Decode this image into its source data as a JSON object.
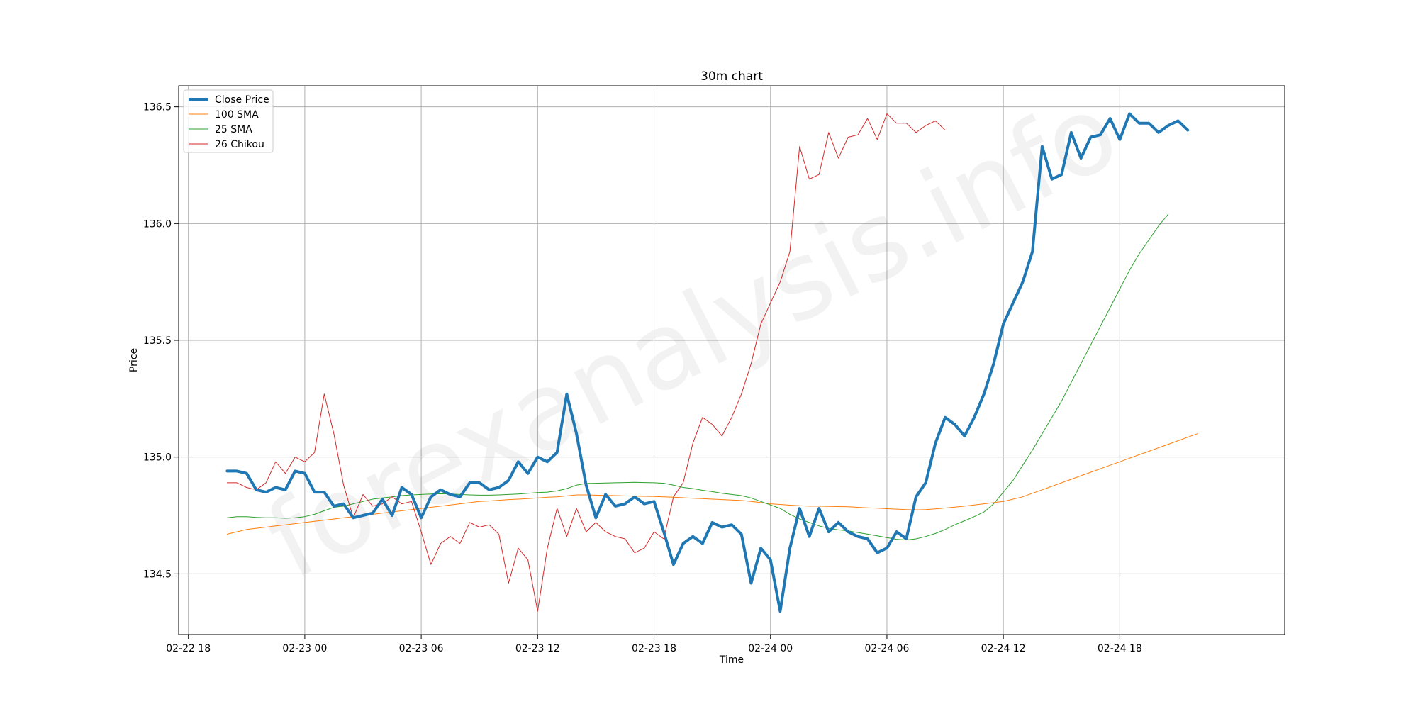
{
  "chart_data": {
    "type": "line",
    "title": "30m chart",
    "xlabel": "Time",
    "ylabel": "Price",
    "watermark": "forexanalysis.info",
    "x_start": "2023-02-22T20:00",
    "x_interval_minutes": 30,
    "xlim": [
      "2023-02-22T17:30",
      "2023-02-25T02:30"
    ],
    "ylim": [
      134.24,
      136.59
    ],
    "x_ticks": [
      {
        "t": "2023-02-22T18:00",
        "label": "02-22 18"
      },
      {
        "t": "2023-02-23T00:00",
        "label": "02-23 00"
      },
      {
        "t": "2023-02-23T06:00",
        "label": "02-23 06"
      },
      {
        "t": "2023-02-23T12:00",
        "label": "02-23 12"
      },
      {
        "t": "2023-02-23T18:00",
        "label": "02-23 18"
      },
      {
        "t": "2023-02-24T00:00",
        "label": "02-24 00"
      },
      {
        "t": "2023-02-24T06:00",
        "label": "02-24 06"
      },
      {
        "t": "2023-02-24T12:00",
        "label": "02-24 12"
      },
      {
        "t": "2023-02-24T18:00",
        "label": "02-24 18"
      }
    ],
    "y_ticks": [
      {
        "v": 134.5,
        "label": "134.5"
      },
      {
        "v": 135.0,
        "label": "135.0"
      },
      {
        "v": 135.5,
        "label": "135.5"
      },
      {
        "v": 136.0,
        "label": "136.0"
      },
      {
        "v": 136.5,
        "label": "136.5"
      }
    ],
    "grid": true,
    "legend_position": "top-left",
    "series": [
      {
        "name": "Close Price",
        "color": "#1f77b4",
        "width": 4,
        "start_index": 0,
        "values": [
          134.94,
          134.94,
          134.93,
          134.86,
          134.85,
          134.87,
          134.86,
          134.94,
          134.93,
          134.85,
          134.85,
          134.79,
          134.8,
          134.74,
          134.75,
          134.76,
          134.82,
          134.75,
          134.87,
          134.84,
          134.74,
          134.83,
          134.86,
          134.84,
          134.83,
          134.89,
          134.89,
          134.86,
          134.87,
          134.9,
          134.98,
          134.93,
          135.0,
          134.98,
          135.02,
          135.27,
          135.1,
          134.88,
          134.74,
          134.84,
          134.79,
          134.8,
          134.83,
          134.8,
          134.81,
          134.68,
          134.54,
          134.63,
          134.66,
          134.63,
          134.72,
          134.7,
          134.71,
          134.67,
          134.46,
          134.61,
          134.56,
          134.34,
          134.61,
          134.78,
          134.66,
          134.78,
          134.68,
          134.72,
          134.68,
          134.66,
          134.65,
          134.59,
          134.61,
          134.68,
          134.65,
          134.83,
          134.89,
          135.06,
          135.17,
          135.14,
          135.09,
          135.17,
          135.27,
          135.4,
          135.57,
          135.66,
          135.75,
          135.88,
          136.33,
          136.19,
          136.21,
          136.39,
          136.28,
          136.37,
          136.38,
          136.45,
          136.36,
          136.47,
          136.43,
          136.43,
          136.39,
          136.42,
          136.44,
          136.4
        ]
      },
      {
        "name": "100 SMA",
        "color": "#ff7f0e",
        "width": 1,
        "start_index": 0,
        "values": [
          134.67,
          134.68,
          134.69,
          134.695,
          134.7,
          134.705,
          134.71,
          134.715,
          134.72,
          134.725,
          134.73,
          134.735,
          134.74,
          134.745,
          134.75,
          134.755,
          134.76,
          134.765,
          134.77,
          134.775,
          134.78,
          134.785,
          134.79,
          134.795,
          134.8,
          134.805,
          134.81,
          134.812,
          134.815,
          134.818,
          134.82,
          134.822,
          134.825,
          134.828,
          134.83,
          134.834,
          134.838,
          134.838,
          134.837,
          134.836,
          134.835,
          134.834,
          134.833,
          134.832,
          134.831,
          134.83,
          134.828,
          134.826,
          134.824,
          134.822,
          134.82,
          134.818,
          134.816,
          134.814,
          134.81,
          134.805,
          134.8,
          134.797,
          134.794,
          134.792,
          134.79,
          134.79,
          134.789,
          134.788,
          134.787,
          134.785,
          134.783,
          134.781,
          134.779,
          134.777,
          134.775,
          134.774,
          134.775,
          134.778,
          134.782,
          134.786,
          134.79,
          134.795,
          134.8,
          134.805,
          134.81,
          134.82,
          134.83,
          134.845,
          134.86,
          134.875,
          134.89,
          134.905,
          134.92,
          134.935,
          134.95,
          134.965,
          134.98,
          134.995,
          135.01,
          135.025,
          135.04,
          135.055,
          135.07,
          135.085,
          135.1
        ]
      },
      {
        "name": "25 SMA",
        "color": "#2ca02c",
        "width": 1,
        "start_index": 0,
        "values": [
          134.74,
          134.745,
          134.745,
          134.742,
          134.74,
          134.74,
          134.738,
          134.74,
          134.745,
          134.755,
          134.77,
          134.785,
          134.79,
          134.8,
          134.81,
          134.82,
          134.825,
          134.83,
          134.835,
          134.838,
          134.84,
          134.842,
          134.843,
          134.842,
          134.84,
          134.838,
          134.837,
          134.837,
          134.838,
          134.84,
          134.842,
          134.845,
          134.848,
          134.85,
          134.855,
          134.865,
          134.88,
          134.887,
          134.888,
          134.889,
          134.89,
          134.891,
          134.892,
          134.891,
          134.89,
          134.888,
          134.88,
          134.87,
          134.865,
          134.858,
          134.852,
          134.845,
          134.84,
          134.835,
          134.825,
          134.81,
          134.795,
          134.78,
          134.755,
          134.735,
          134.72,
          134.705,
          134.695,
          134.688,
          134.684,
          134.677,
          134.67,
          134.663,
          134.655,
          134.648,
          134.645,
          134.65,
          134.66,
          134.673,
          134.69,
          134.71,
          134.727,
          134.745,
          134.765,
          134.8,
          134.85,
          134.9,
          134.965,
          135.03,
          135.1,
          135.17,
          135.24,
          135.32,
          135.4,
          135.48,
          135.56,
          135.64,
          135.72,
          135.8,
          135.87,
          135.93,
          135.99,
          136.04
        ]
      },
      {
        "name": "26 Chikou",
        "color": "#d62728",
        "width": 1,
        "start_index": 0,
        "values": [
          134.89,
          134.89,
          134.87,
          134.86,
          134.89,
          134.98,
          134.93,
          135.0,
          134.98,
          135.02,
          135.27,
          135.1,
          134.88,
          134.74,
          134.84,
          134.79,
          134.8,
          134.83,
          134.8,
          134.81,
          134.68,
          134.54,
          134.63,
          134.66,
          134.63,
          134.72,
          134.7,
          134.71,
          134.67,
          134.46,
          134.61,
          134.56,
          134.34,
          134.61,
          134.78,
          134.66,
          134.78,
          134.68,
          134.72,
          134.68,
          134.66,
          134.65,
          134.59,
          134.61,
          134.68,
          134.65,
          134.83,
          134.89,
          135.06,
          135.17,
          135.14,
          135.09,
          135.17,
          135.27,
          135.4,
          135.57,
          135.66,
          135.75,
          135.88,
          136.33,
          136.19,
          136.21,
          136.39,
          136.28,
          136.37,
          136.38,
          136.45,
          136.36,
          136.47,
          136.43,
          136.43,
          136.39,
          136.42,
          136.44,
          136.4
        ]
      }
    ]
  }
}
